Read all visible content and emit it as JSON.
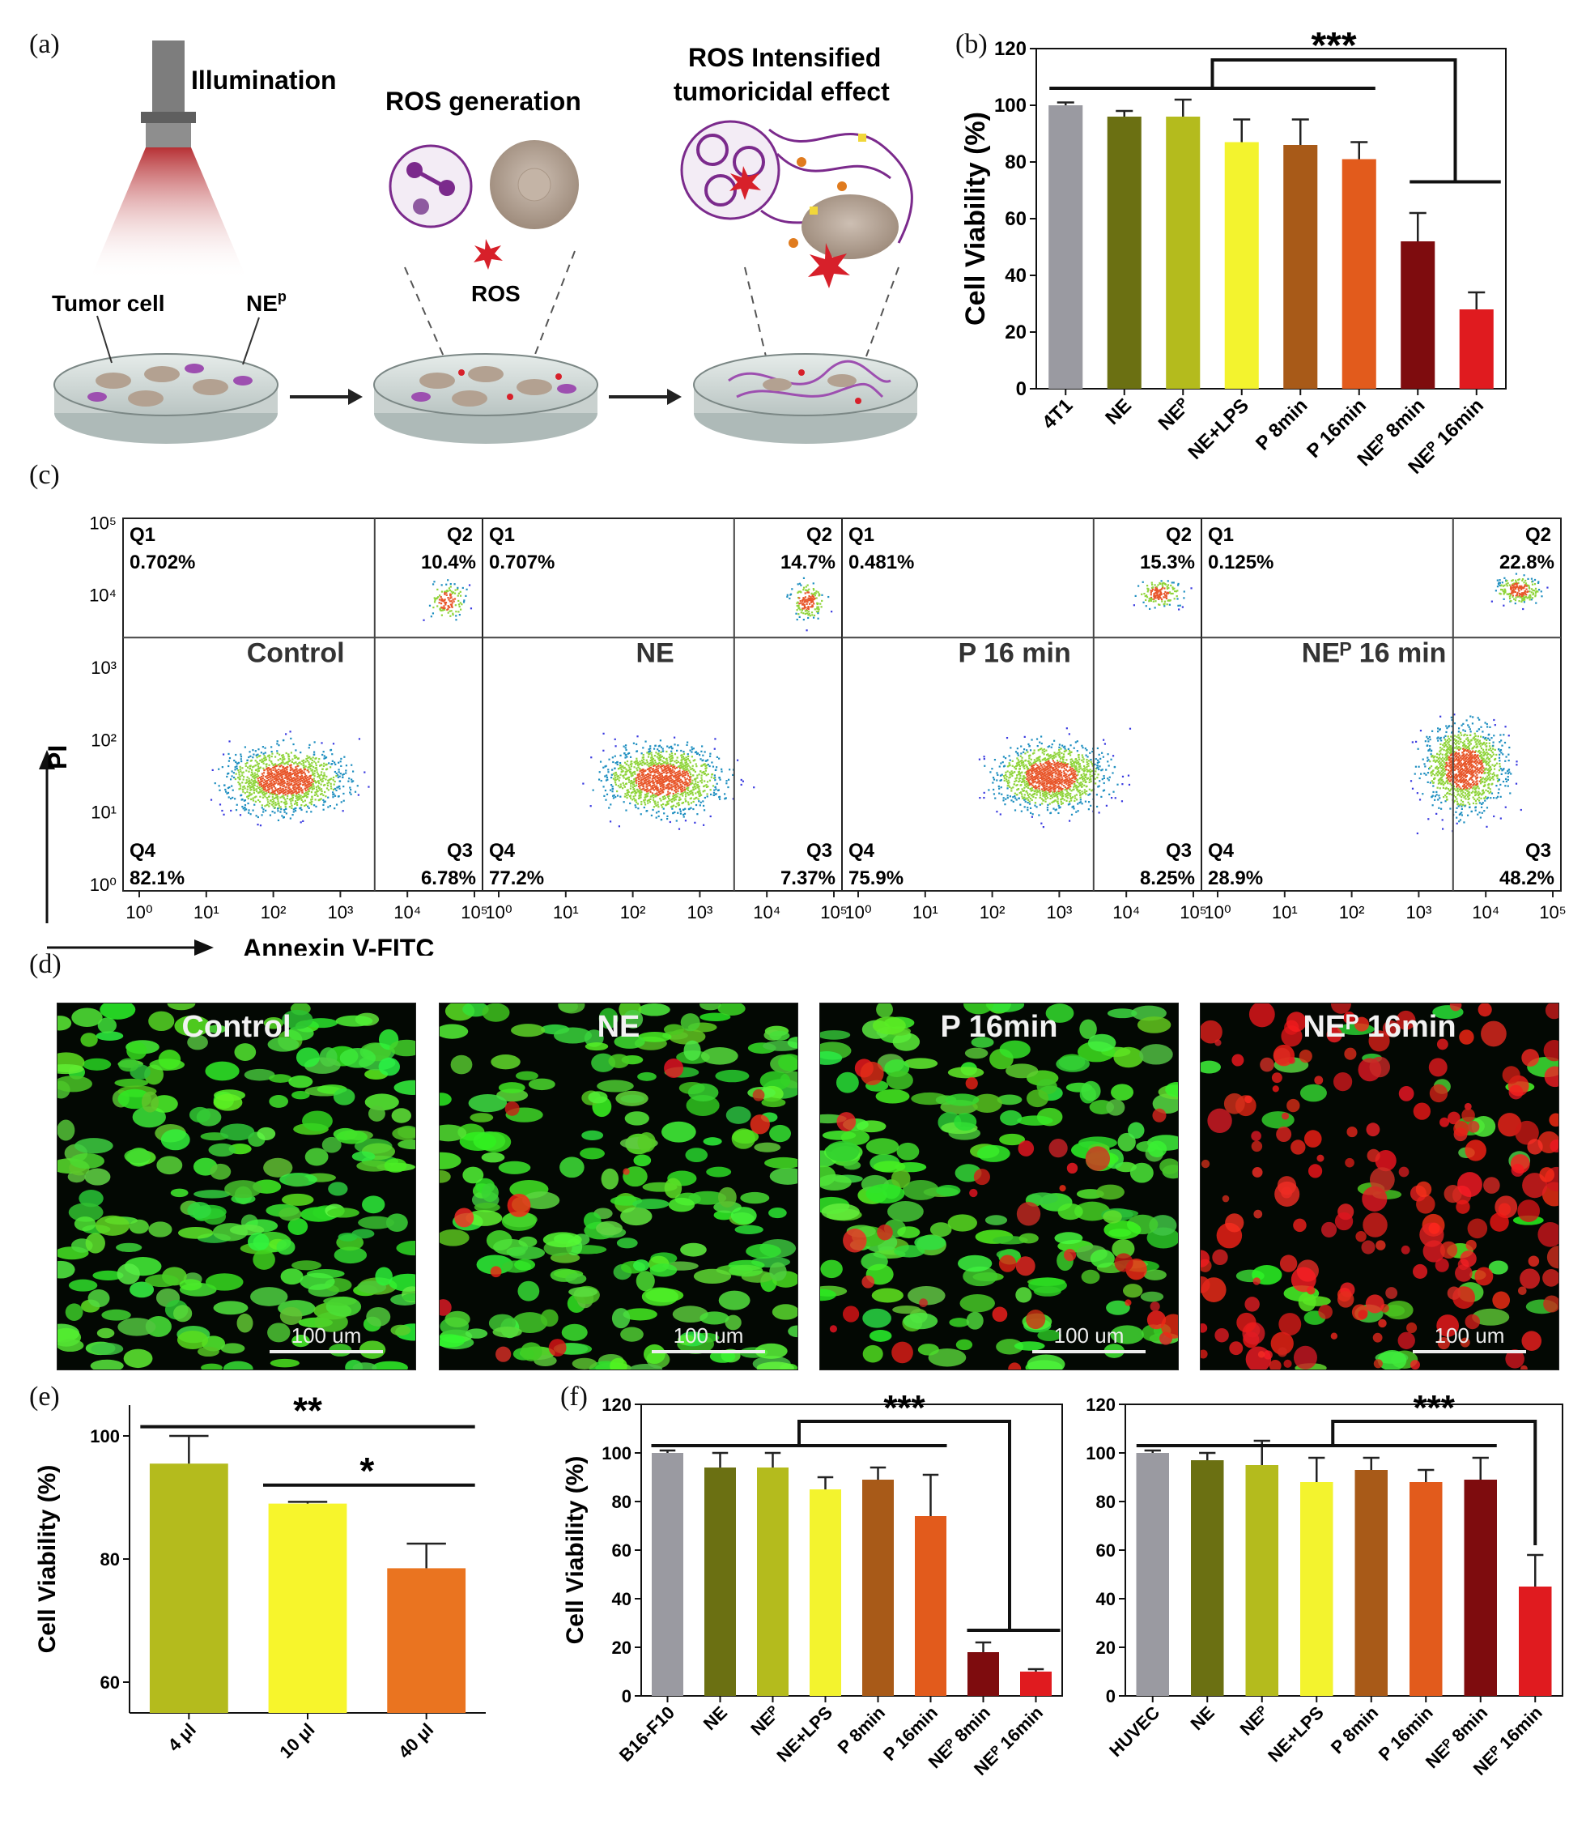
{
  "panels": {
    "a": "(a)",
    "b": "(b)",
    "c": "(c)",
    "d": "(d)",
    "e": "(e)",
    "f": "(f)"
  },
  "schematic": {
    "illumination": "Illumination",
    "ros_generation": "ROS generation",
    "ros_intensified_line1": "ROS Intensified",
    "ros_intensified_line2": "tumoricidal effect",
    "tumor_cell": "Tumor cell",
    "ne_p": "NE",
    "ne_p_sup": "p",
    "ros": "ROS"
  },
  "flow": {
    "xlabel": "Annexin V-FITC",
    "ylabel": "PI",
    "ticks": [
      "10⁰",
      "10¹",
      "10²",
      "10³",
      "10⁴",
      "10⁵"
    ],
    "panels": [
      {
        "title": "Control",
        "q1": "0.702%",
        "q2": "10.4%",
        "q3": "6.78%",
        "q4": "82.1%"
      },
      {
        "title": "NE",
        "q1": "0.707%",
        "q2": "14.7%",
        "q3": "7.37%",
        "q4": "77.2%"
      },
      {
        "title": "P  16 min",
        "q1": "0.481%",
        "q2": "15.3%",
        "q3": "8.25%",
        "q4": "75.9%"
      },
      {
        "title": "NEᴾ 16 min",
        "q1": "0.125%",
        "q2": "22.8%",
        "q3": "48.2%",
        "q4": "28.9%"
      }
    ],
    "quadrant_labels": {
      "q1": "Q1",
      "q2": "Q2",
      "q3": "Q3",
      "q4": "Q4"
    }
  },
  "microscopy": {
    "panels": [
      {
        "title": "Control",
        "scale": "100 um",
        "green": 1.0,
        "red": 0.0
      },
      {
        "title": "NE",
        "scale": "100 um",
        "green": 0.95,
        "red": 0.05
      },
      {
        "title": "P 16min",
        "scale": "100 um",
        "green": 0.85,
        "red": 0.15
      },
      {
        "title": "NEᴾ 16min",
        "scale": "100 um",
        "green": 0.15,
        "red": 0.85
      }
    ]
  },
  "chart_data": [
    {
      "id": "b",
      "type": "bar",
      "ylabel": "Cell Viability (%)",
      "ylim": [
        0,
        120
      ],
      "yticks": [
        0,
        20,
        40,
        60,
        80,
        100,
        120
      ],
      "categories": [
        "4T1",
        "NE",
        "NEᴾ",
        "NE+LPS",
        "P 8min",
        "P 16min",
        "NEᴾ 8min",
        "NEᴾ 16min"
      ],
      "values": [
        100,
        96,
        96,
        87,
        86,
        81,
        52,
        28
      ],
      "errors": [
        1,
        2,
        6,
        8,
        9,
        6,
        10,
        6
      ],
      "colors": [
        "#9a9aa1",
        "#6b7012",
        "#b4bb1d",
        "#f3f32e",
        "#a85a18",
        "#e25b1c",
        "#7e0c0e",
        "#e01b1f"
      ],
      "significance": "***"
    },
    {
      "id": "e",
      "type": "bar",
      "ylabel": "Cell Viability (%)",
      "ylim": [
        55,
        105
      ],
      "yticks": [
        60,
        80,
        100
      ],
      "categories": [
        "4 μl",
        "10 μl",
        "40 μl"
      ],
      "values": [
        95.5,
        89,
        78.5
      ],
      "errors": [
        4.5,
        0.3,
        4
      ],
      "colors": [
        "#b4bb1d",
        "#f7f52c",
        "#ea7420"
      ],
      "significance": [
        "**",
        "*"
      ]
    },
    {
      "id": "f1",
      "type": "bar",
      "ylabel": "Cell Viability (%)",
      "ylim": [
        0,
        120
      ],
      "yticks": [
        0,
        20,
        40,
        60,
        80,
        100,
        120
      ],
      "categories": [
        "B16-F10",
        "NE",
        "NEᴾ",
        "NE+LPS",
        "P 8min",
        "P 16min",
        "NEᴾ 8min",
        "NEᴾ 16min"
      ],
      "values": [
        100,
        94,
        94,
        85,
        89,
        74,
        18,
        10
      ],
      "errors": [
        1,
        6,
        6,
        5,
        5,
        17,
        4,
        1
      ],
      "colors": [
        "#9a9aa1",
        "#6b7012",
        "#b4bb1d",
        "#f3f32e",
        "#a85a18",
        "#e25b1c",
        "#7e0c0e",
        "#e01b1f"
      ],
      "significance": "***"
    },
    {
      "id": "f2",
      "type": "bar",
      "ylabel": "",
      "ylim": [
        0,
        120
      ],
      "yticks": [
        0,
        20,
        40,
        60,
        80,
        100,
        120
      ],
      "categories": [
        "HUVEC",
        "NE",
        "NEᴾ",
        "NE+LPS",
        "P 8min",
        "P 16min",
        "NEᴾ 8min",
        "NEᴾ 16min"
      ],
      "values": [
        100,
        97,
        95,
        88,
        93,
        88,
        89,
        45
      ],
      "errors": [
        1,
        3,
        10,
        10,
        5,
        5,
        9,
        13
      ],
      "colors": [
        "#9a9aa1",
        "#6b7012",
        "#b4bb1d",
        "#f3f32e",
        "#a85a18",
        "#e25b1c",
        "#7e0c0e",
        "#e01b1f"
      ],
      "significance": "***"
    }
  ]
}
